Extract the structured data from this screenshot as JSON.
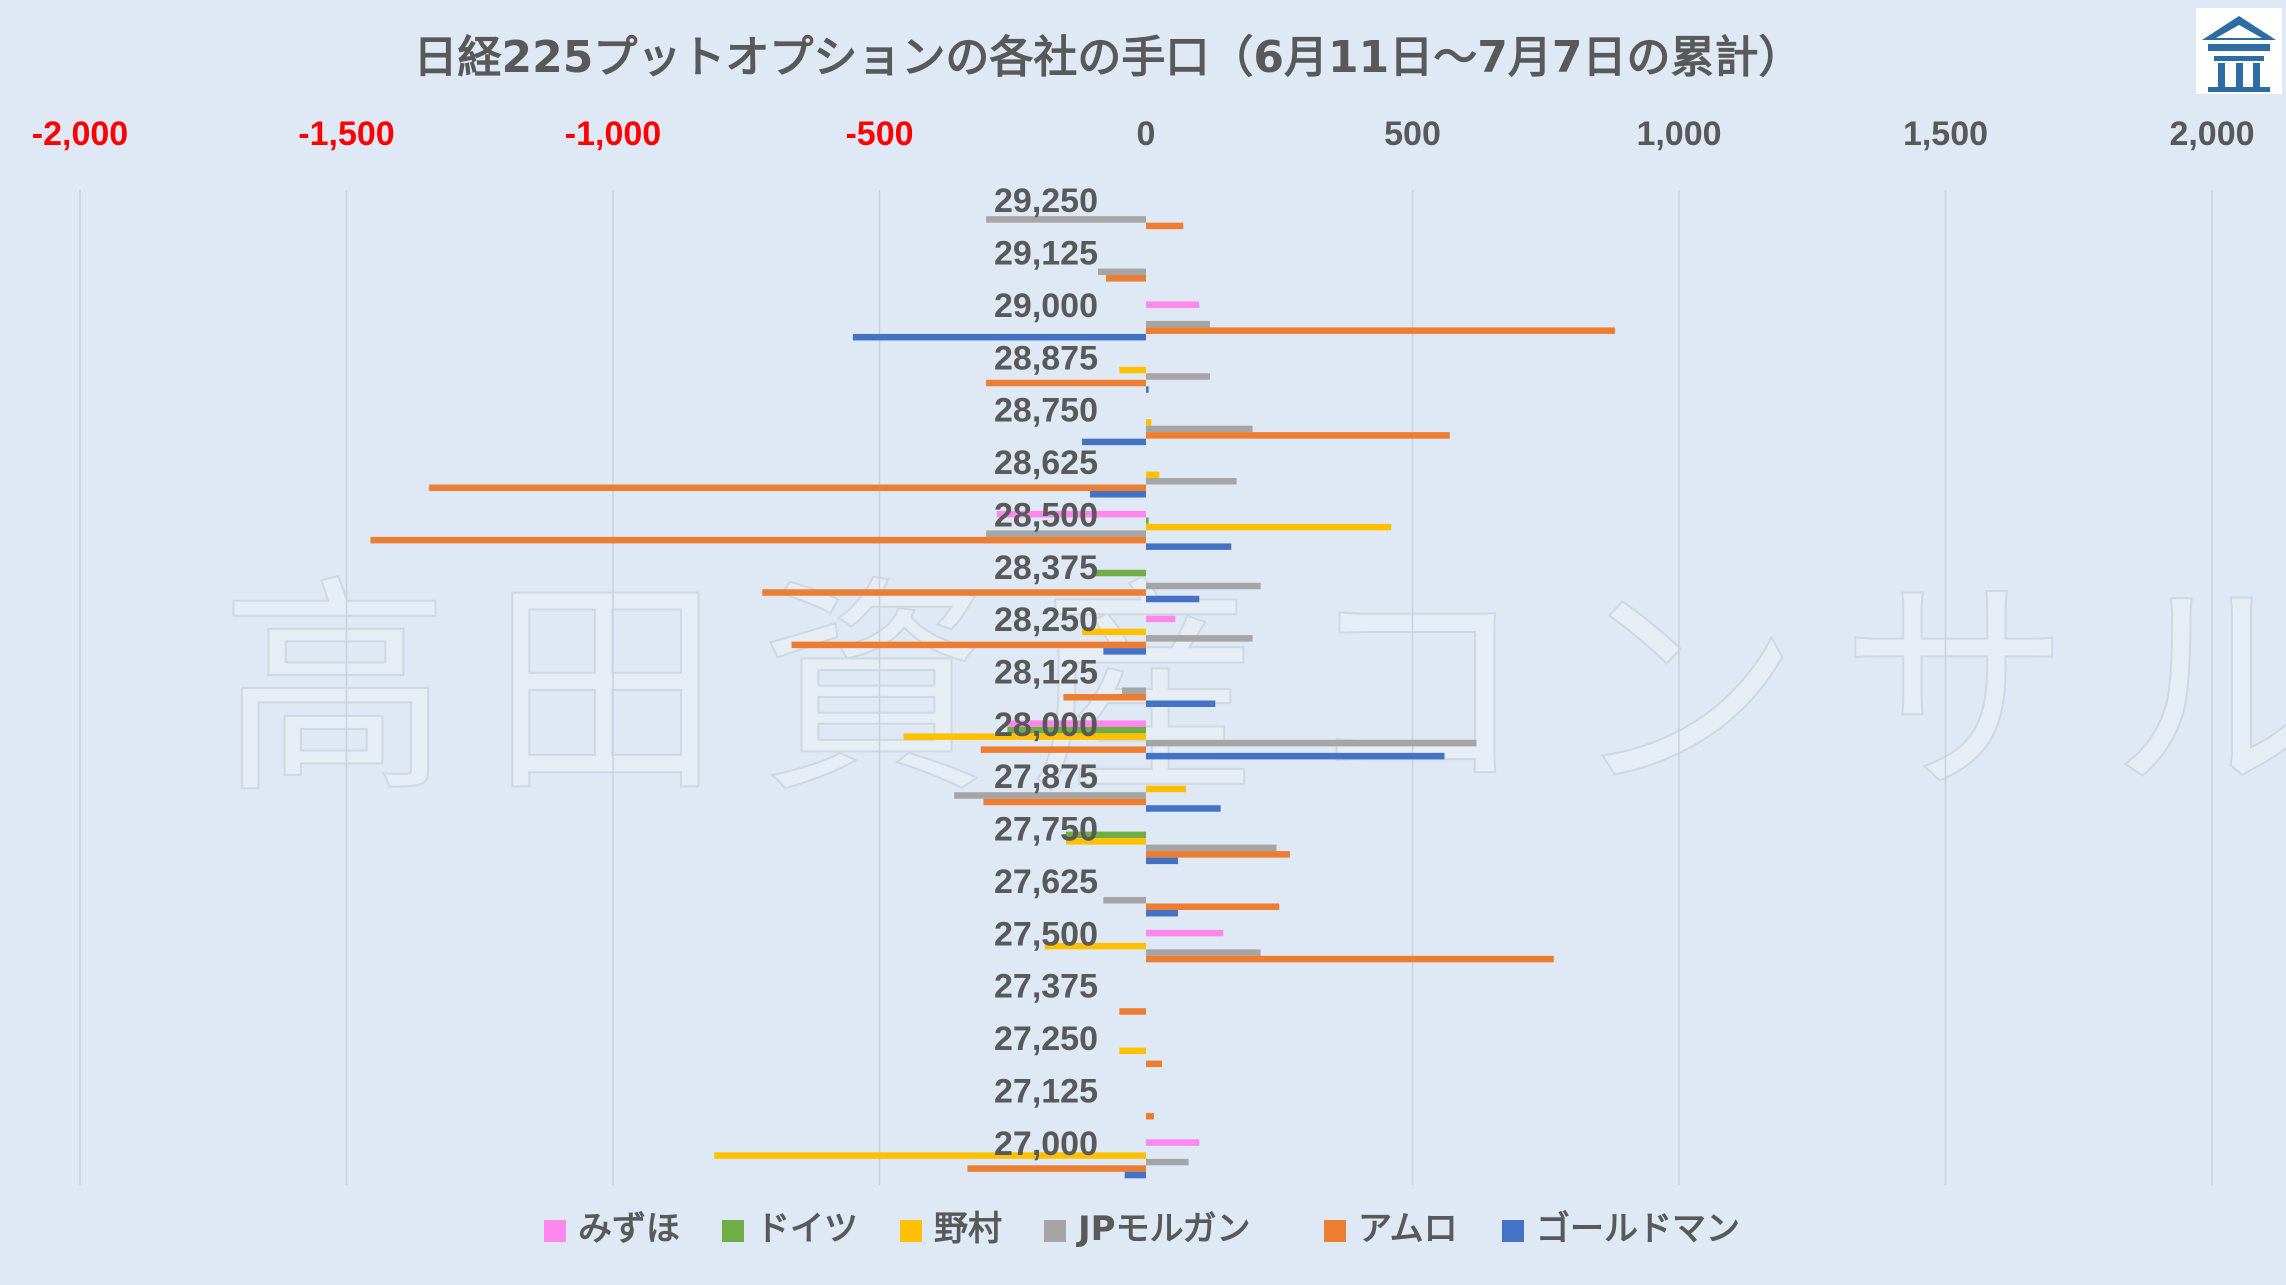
{
  "logo": {
    "name": "logo-icon",
    "color": "#2e6da4"
  },
  "watermark": "高田資産コンサル",
  "chart_data": {
    "type": "bar",
    "orientation": "horizontal",
    "title": "日経225プットオプションの各社の手口（6月11日～7月7日の累計）",
    "xlim": [
      -2000,
      2000
    ],
    "x_ticks": [
      -2000,
      -1500,
      -1000,
      -500,
      0,
      500,
      1000,
      1500,
      2000
    ],
    "x_tick_labels": [
      "-2,000",
      "-1,500",
      "-1,000",
      "-500",
      "0",
      "500",
      "1,000",
      "1,500",
      "2,000"
    ],
    "negative_tick_color": "#ff0000",
    "positive_tick_color": "#595959",
    "categories": [
      "29,250",
      "29,125",
      "29,000",
      "28,875",
      "28,750",
      "28,625",
      "28,500",
      "28,375",
      "28,250",
      "28,125",
      "28,000",
      "27,875",
      "27,750",
      "27,625",
      "27,500",
      "27,375",
      "27,250",
      "27,125",
      "27,000"
    ],
    "legend_position": "bottom",
    "grid": "vertical",
    "series": [
      {
        "name": "みずほ",
        "color": "#ff88ee",
        "values": [
          0,
          0,
          100,
          0,
          0,
          0,
          -280,
          0,
          55,
          0,
          -260,
          0,
          0,
          0,
          145,
          0,
          0,
          0,
          100
        ]
      },
      {
        "name": "ドイツ",
        "color": "#70ad47",
        "values": [
          0,
          0,
          0,
          0,
          0,
          0,
          5,
          -100,
          0,
          0,
          -260,
          0,
          -150,
          0,
          0,
          0,
          0,
          0,
          0
        ]
      },
      {
        "name": "野村",
        "color": "#ffc000",
        "values": [
          0,
          0,
          0,
          -50,
          10,
          25,
          460,
          0,
          -120,
          0,
          -455,
          75,
          -150,
          0,
          -190,
          0,
          -50,
          0,
          -810
        ]
      },
      {
        "name": "JPモルガン",
        "color": "#a5a5a5",
        "values": [
          -300,
          -90,
          120,
          120,
          200,
          170,
          -300,
          215,
          200,
          -45,
          620,
          -360,
          245,
          -80,
          215,
          0,
          0,
          0,
          80
        ]
      },
      {
        "name": "アムロ",
        "color": "#ed7d31",
        "values": [
          70,
          -75,
          880,
          -300,
          570,
          -1345,
          -1455,
          -720,
          -665,
          -155,
          -310,
          -305,
          270,
          250,
          765,
          -50,
          30,
          15,
          -335
        ]
      },
      {
        "name": "ゴールドマン",
        "color": "#4472c4",
        "values": [
          0,
          0,
          -550,
          5,
          -120,
          -105,
          160,
          100,
          -80,
          130,
          560,
          140,
          60,
          60,
          0,
          0,
          0,
          0,
          -40
        ]
      }
    ]
  }
}
